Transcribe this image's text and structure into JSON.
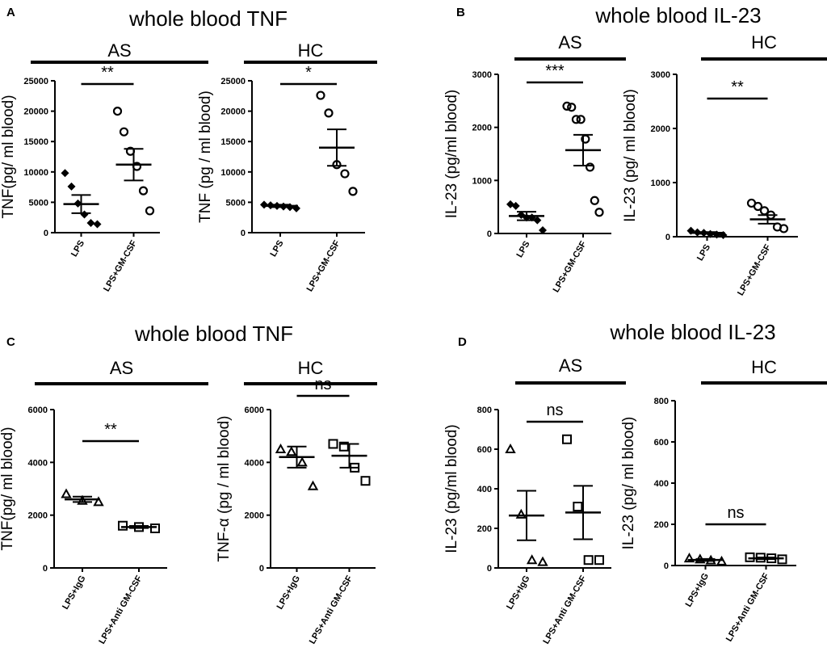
{
  "panels": [
    {
      "letter": "A",
      "title": "whole blood TNF"
    },
    {
      "letter": "B",
      "title": "whole blood IL-23"
    },
    {
      "letter": "C",
      "title": "whole blood TNF"
    },
    {
      "letter": "D",
      "title": "whole blood IL-23"
    }
  ],
  "chart_data": [
    {
      "type": "dot",
      "group": "AS",
      "ylabel": "TNF(pg/ ml blood)",
      "categories": [
        "LPS",
        "LPS+GM-CSF"
      ],
      "markers": [
        "diamond",
        "circle"
      ],
      "values": [
        [
          9800,
          7600,
          4800,
          3000,
          1600,
          1400
        ],
        [
          20000,
          16600,
          13400,
          10900,
          6900,
          3600
        ]
      ],
      "means": [
        4700,
        11200
      ],
      "errors": [
        1500,
        2600
      ],
      "ylim": [
        0,
        25000
      ],
      "yticks": [
        0,
        5000,
        10000,
        15000,
        20000,
        25000
      ],
      "significance": "**"
    },
    {
      "type": "dot",
      "group": "HC",
      "ylabel": "TNF (pg / ml blood)",
      "categories": [
        "LPS",
        "LPS+GM-CSF"
      ],
      "markers": [
        "diamond",
        "circle"
      ],
      "values": [
        [
          4600,
          4500,
          4400,
          4300,
          4200,
          4000
        ],
        [
          22600,
          19700,
          11200,
          9700,
          6800
        ]
      ],
      "means": [
        4400,
        14000
      ],
      "errors": [
        200,
        3000
      ],
      "ylim": [
        0,
        25000
      ],
      "yticks": [
        0,
        5000,
        10000,
        15000,
        20000,
        25000
      ],
      "significance": "*"
    },
    {
      "type": "dot",
      "group": "AS",
      "ylabel": "IL-23 (pg/ml blood)",
      "categories": [
        "LPS",
        "LPS+GM-CSF"
      ],
      "markers": [
        "diamond",
        "circle"
      ],
      "values": [
        [
          550,
          520,
          350,
          300,
          300,
          250,
          60
        ],
        [
          2400,
          2380,
          2150,
          2150,
          1780,
          1250,
          620,
          400
        ]
      ],
      "means": [
        330,
        1570
      ],
      "errors": [
        80,
        290
      ],
      "ylim": [
        0,
        3000
      ],
      "yticks": [
        0,
        1000,
        2000,
        3000
      ],
      "significance": "***"
    },
    {
      "type": "dot",
      "group": "HC",
      "ylabel": "IL-23 (pg/ ml blood)",
      "categories": [
        "LPS",
        "LPS+GM-CSF"
      ],
      "markers": [
        "diamond",
        "circle"
      ],
      "values": [
        [
          110,
          80,
          70,
          50,
          40,
          30
        ],
        [
          620,
          560,
          480,
          400,
          180,
          150
        ]
      ],
      "means": [
        70,
        320
      ],
      "errors": [
        15,
        80
      ],
      "ylim": [
        0,
        3000
      ],
      "yticks": [
        0,
        1000,
        2000,
        3000
      ],
      "significance": "**"
    },
    {
      "type": "dot",
      "group": "AS",
      "ylabel": "TNF(pg/ ml blood)",
      "categories": [
        "LPS+IgG",
        "LPS+Anti GM-CSF"
      ],
      "markers": [
        "triangle",
        "square"
      ],
      "values": [
        [
          2800,
          2550,
          2500
        ],
        [
          1600,
          1550,
          1500
        ]
      ],
      "means": [
        2600,
        1550
      ],
      "errors": [
        100,
        40
      ],
      "ylim": [
        0,
        6000
      ],
      "yticks": [
        0,
        2000,
        4000,
        6000
      ],
      "significance": "**"
    },
    {
      "type": "dot",
      "group": "HC",
      "ylabel": "TNF-α (pg / ml blood)",
      "categories": [
        "LPS+IgG",
        "LPS+Anti GM-CSF"
      ],
      "markers": [
        "triangle",
        "square"
      ],
      "values": [
        [
          4500,
          4400,
          4000,
          3100
        ],
        [
          4700,
          4600,
          3800,
          3300
        ]
      ],
      "means": [
        4200,
        4250
      ],
      "errors": [
        400,
        450
      ],
      "ylim": [
        0,
        6000
      ],
      "yticks": [
        0,
        2000,
        4000,
        6000
      ],
      "significance": "ns"
    },
    {
      "type": "dot",
      "group": "AS",
      "ylabel": "IL-23 (pg/ml blood)",
      "categories": [
        "LPS+IgG",
        "LPS+Anti GM-CSF"
      ],
      "markers": [
        "triangle",
        "square"
      ],
      "values": [
        [
          600,
          270,
          40,
          30
        ],
        [
          650,
          310,
          40,
          40
        ]
      ],
      "means": [
        265,
        280
      ],
      "errors": [
        125,
        135
      ],
      "ylim": [
        0,
        800
      ],
      "yticks": [
        0,
        200,
        400,
        600,
        800
      ],
      "significance": "ns"
    },
    {
      "type": "dot",
      "group": "HC",
      "ylabel": "IL-23 (pg/ ml blood)",
      "categories": [
        "LPS+IgG",
        "LPS+Anti GM-CSF"
      ],
      "markers": [
        "triangle",
        "square"
      ],
      "values": [
        [
          35,
          30,
          25,
          20
        ],
        [
          40,
          38,
          35,
          30
        ]
      ],
      "means": [
        27,
        35
      ],
      "errors": [
        5,
        4
      ],
      "ylim": [
        0,
        800
      ],
      "yticks": [
        0,
        200,
        400,
        600,
        800
      ],
      "significance": "ns"
    }
  ]
}
